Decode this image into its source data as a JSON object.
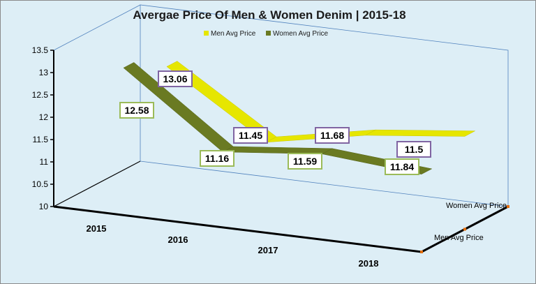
{
  "chart_data": {
    "type": "line",
    "title": "Avergae Price Of Men & Women Denim | 2015-18",
    "categories": [
      "2015",
      "2016",
      "2017",
      "2018"
    ],
    "series": [
      {
        "name": "Men Avg Price",
        "values": [
          12.58,
          11.16,
          11.59,
          11.84
        ]
      },
      {
        "name": "Women Avg Price",
        "values": [
          13.06,
          11.45,
          11.68,
          11.5
        ]
      }
    ],
    "ylim": [
      10,
      13.5
    ],
    "yticks": [
      "13.5",
      "13",
      "12.5",
      "12",
      "11.5",
      "11",
      "10.5",
      "10"
    ],
    "legend_position": "top",
    "three_d": true
  },
  "colors": {
    "background": "#ddeef6",
    "men_fill": "#e6e600",
    "men_edge": "#c8c800",
    "women_fill": "#6a7a22",
    "women_edge": "#556218",
    "men_label_border": "#9bbb59",
    "women_label_border": "#8064a2",
    "axis": "#000000",
    "wall_line": "#4f81bd"
  }
}
